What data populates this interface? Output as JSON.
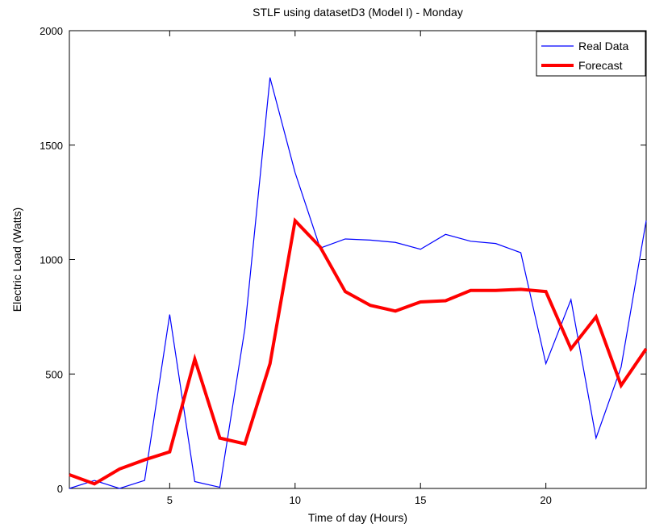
{
  "chart_data": {
    "type": "line",
    "title": "STLF using datasetD3 (Model I) - Monday",
    "xlabel": "Time of day (Hours)",
    "ylabel": "Electric Load (Watts)",
    "xlim": [
      1,
      24
    ],
    "ylim": [
      0,
      2000
    ],
    "xticks": [
      5,
      10,
      15,
      20
    ],
    "yticks": [
      0,
      500,
      1000,
      1500,
      2000
    ],
    "grid": false,
    "legend_position": "top-right",
    "x": [
      1,
      2,
      3,
      4,
      5,
      6,
      7,
      8,
      9,
      10,
      11,
      12,
      13,
      14,
      15,
      16,
      17,
      18,
      19,
      20,
      21,
      22,
      23,
      24
    ],
    "series": [
      {
        "name": "Real Data",
        "color": "#0000ff",
        "values": [
          0,
          35,
          0,
          35,
          760,
          30,
          5,
          700,
          1795,
          1380,
          1050,
          1090,
          1085,
          1075,
          1045,
          1110,
          1080,
          1070,
          1030,
          545,
          825,
          220,
          530,
          1170
        ]
      },
      {
        "name": "Forecast",
        "color": "#ff0000",
        "values": [
          60,
          20,
          85,
          125,
          160,
          565,
          220,
          195,
          545,
          1170,
          1055,
          860,
          800,
          775,
          815,
          820,
          865,
          865,
          870,
          860,
          610,
          750,
          450,
          610
        ]
      }
    ]
  }
}
